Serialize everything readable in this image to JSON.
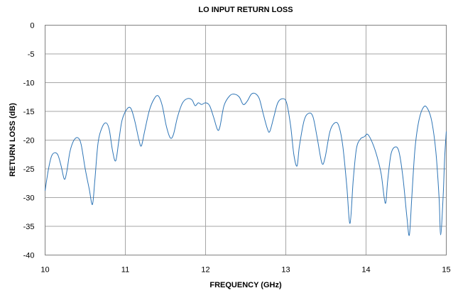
{
  "chart_data": {
    "type": "line",
    "title": "LO INPUT RETURN LOSS",
    "xlabel": "FREQUENCY (GHz)",
    "ylabel": "RETURN LOSS (dB)",
    "xlim": [
      10,
      15
    ],
    "ylim": [
      -40,
      0
    ],
    "xticks": [
      10,
      11,
      12,
      13,
      14,
      15
    ],
    "yticks": [
      0,
      -5,
      -10,
      -15,
      -20,
      -25,
      -30,
      -35,
      -40
    ],
    "grid": true,
    "legend": "none",
    "series": [
      {
        "color": "#2e75b6",
        "points": [
          [
            10.0,
            -28.8
          ],
          [
            10.04,
            -25.2
          ],
          [
            10.08,
            -22.8
          ],
          [
            10.12,
            -22.2
          ],
          [
            10.16,
            -22.6
          ],
          [
            10.2,
            -24.5
          ],
          [
            10.24,
            -26.8
          ],
          [
            10.27,
            -25.5
          ],
          [
            10.31,
            -22.0
          ],
          [
            10.36,
            -20.0
          ],
          [
            10.41,
            -19.6
          ],
          [
            10.45,
            -20.8
          ],
          [
            10.5,
            -25.0
          ],
          [
            10.55,
            -28.5
          ],
          [
            10.59,
            -31.2
          ],
          [
            10.62,
            -27.0
          ],
          [
            10.66,
            -20.5
          ],
          [
            10.71,
            -17.8
          ],
          [
            10.76,
            -17.0
          ],
          [
            10.8,
            -18.2
          ],
          [
            10.84,
            -21.8
          ],
          [
            10.88,
            -23.6
          ],
          [
            10.92,
            -20.0
          ],
          [
            10.96,
            -16.5
          ],
          [
            11.02,
            -14.6
          ],
          [
            11.07,
            -14.5
          ],
          [
            11.12,
            -16.8
          ],
          [
            11.17,
            -20.0
          ],
          [
            11.2,
            -21.0
          ],
          [
            11.24,
            -18.5
          ],
          [
            11.3,
            -14.8
          ],
          [
            11.36,
            -12.8
          ],
          [
            11.41,
            -12.3
          ],
          [
            11.46,
            -14.0
          ],
          [
            11.51,
            -17.5
          ],
          [
            11.56,
            -19.6
          ],
          [
            11.6,
            -19.0
          ],
          [
            11.65,
            -16.0
          ],
          [
            11.71,
            -13.6
          ],
          [
            11.77,
            -12.8
          ],
          [
            11.83,
            -13.0
          ],
          [
            11.87,
            -14.0
          ],
          [
            11.91,
            -13.5
          ],
          [
            11.95,
            -13.8
          ],
          [
            12.0,
            -13.5
          ],
          [
            12.05,
            -14.0
          ],
          [
            12.1,
            -16.0
          ],
          [
            12.15,
            -18.2
          ],
          [
            12.18,
            -17.6
          ],
          [
            12.23,
            -14.0
          ],
          [
            12.3,
            -12.3
          ],
          [
            12.36,
            -12.0
          ],
          [
            12.42,
            -12.5
          ],
          [
            12.47,
            -13.8
          ],
          [
            12.52,
            -13.2
          ],
          [
            12.57,
            -12.0
          ],
          [
            12.62,
            -11.9
          ],
          [
            12.67,
            -12.8
          ],
          [
            12.72,
            -15.5
          ],
          [
            12.77,
            -18.0
          ],
          [
            12.8,
            -18.5
          ],
          [
            12.85,
            -16.0
          ],
          [
            12.9,
            -13.5
          ],
          [
            12.96,
            -12.8
          ],
          [
            13.01,
            -13.5
          ],
          [
            13.06,
            -17.5
          ],
          [
            13.1,
            -22.5
          ],
          [
            13.14,
            -24.5
          ],
          [
            13.17,
            -21.0
          ],
          [
            13.23,
            -16.5
          ],
          [
            13.29,
            -15.3
          ],
          [
            13.34,
            -16.0
          ],
          [
            13.39,
            -19.5
          ],
          [
            13.45,
            -24.0
          ],
          [
            13.49,
            -23.0
          ],
          [
            13.55,
            -18.5
          ],
          [
            13.61,
            -17.0
          ],
          [
            13.66,
            -17.5
          ],
          [
            13.71,
            -21.0
          ],
          [
            13.76,
            -28.0
          ],
          [
            13.8,
            -34.5
          ],
          [
            13.84,
            -27.0
          ],
          [
            13.88,
            -21.5
          ],
          [
            13.93,
            -19.8
          ],
          [
            13.98,
            -19.4
          ],
          [
            14.02,
            -19.0
          ],
          [
            14.08,
            -20.5
          ],
          [
            14.14,
            -23.0
          ],
          [
            14.19,
            -26.0
          ],
          [
            14.24,
            -31.0
          ],
          [
            14.27,
            -27.0
          ],
          [
            14.31,
            -22.5
          ],
          [
            14.36,
            -21.2
          ],
          [
            14.41,
            -22.0
          ],
          [
            14.46,
            -26.5
          ],
          [
            14.51,
            -33.5
          ],
          [
            14.54,
            -36.5
          ],
          [
            14.57,
            -30.0
          ],
          [
            14.61,
            -21.5
          ],
          [
            14.66,
            -16.5
          ],
          [
            14.72,
            -14.2
          ],
          [
            14.77,
            -14.6
          ],
          [
            14.82,
            -16.8
          ],
          [
            14.87,
            -22.0
          ],
          [
            14.91,
            -30.0
          ],
          [
            14.93,
            -36.5
          ],
          [
            14.96,
            -30.0
          ],
          [
            14.98,
            -23.0
          ],
          [
            15.0,
            -18.5
          ]
        ]
      }
    ]
  }
}
